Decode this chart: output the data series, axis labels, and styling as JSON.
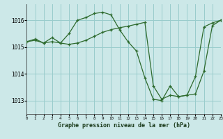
{
  "title": "Graphe pression niveau de la mer (hPa)",
  "bg_color": "#cce8e8",
  "grid_color": "#99cccc",
  "line_color": "#2d6a2d",
  "xlim": [
    0,
    23
  ],
  "ylim": [
    1012.5,
    1016.6
  ],
  "yticks": [
    1013,
    1014,
    1015,
    1016
  ],
  "xticks": [
    0,
    1,
    2,
    3,
    4,
    5,
    6,
    7,
    8,
    9,
    10,
    11,
    12,
    13,
    14,
    15,
    16,
    17,
    18,
    19,
    20,
    21,
    22,
    23
  ],
  "series1_x": [
    0,
    1,
    2,
    3,
    4,
    5,
    6,
    7,
    8,
    9,
    10,
    11,
    12,
    13,
    14,
    15,
    16,
    17,
    18,
    19,
    20,
    21,
    22,
    23
  ],
  "series1_y": [
    1015.2,
    1015.3,
    1015.15,
    1015.35,
    1015.15,
    1015.5,
    1016.0,
    1016.1,
    1016.25,
    1016.3,
    1016.2,
    1015.65,
    1015.2,
    1014.85,
    1013.85,
    1013.05,
    1013.0,
    1013.55,
    1013.15,
    1013.2,
    1013.9,
    1015.75,
    1015.9,
    1016.0
  ],
  "series2_x": [
    0,
    1,
    2,
    3,
    4,
    5,
    6,
    7,
    8,
    9,
    10,
    11,
    12,
    13,
    14,
    15,
    16,
    17,
    18,
    19,
    20,
    21,
    22,
    23
  ],
  "series2_y": [
    1015.2,
    1015.25,
    1015.15,
    1015.2,
    1015.15,
    1015.1,
    1015.15,
    1015.25,
    1015.4,
    1015.55,
    1015.65,
    1015.72,
    1015.78,
    1015.85,
    1015.92,
    1013.55,
    1013.05,
    1013.2,
    1013.15,
    1013.2,
    1013.25,
    1014.1,
    1015.8,
    1016.0
  ]
}
